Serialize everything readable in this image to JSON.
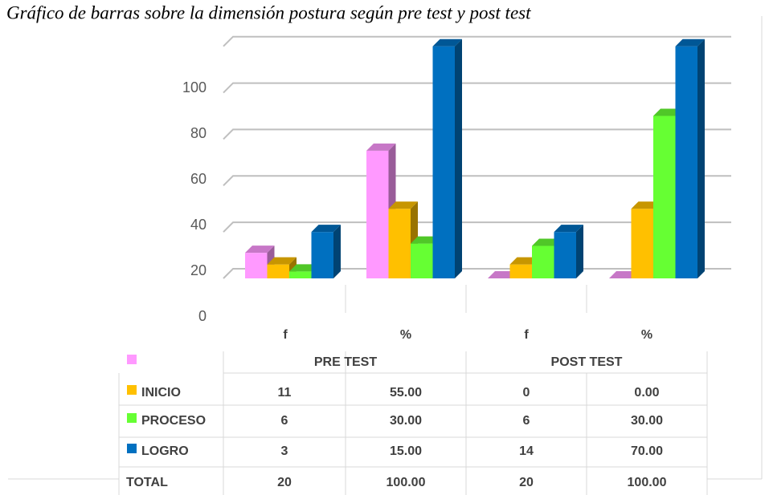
{
  "chart_data": {
    "type": "bar3d",
    "title": "Gráfico de barras sobre la dimensión postura según pre test y post test",
    "categories": [
      "f",
      "%",
      "f",
      "%"
    ],
    "groups": [
      "PRE TEST",
      "POST TEST"
    ],
    "series": [
      {
        "name": "INICIO",
        "color": "#ff99ff",
        "values": [
          11,
          55,
          0,
          0
        ],
        "value_labels": [
          "11",
          "55.00",
          "0",
          "0.00"
        ]
      },
      {
        "name": "PROCESO",
        "color": "#ffc000",
        "values": [
          6,
          30,
          6,
          30
        ],
        "value_labels": [
          "6",
          "30.00",
          "6",
          "30.00"
        ]
      },
      {
        "name": "LOGRO",
        "color": "#66ff33",
        "values": [
          3,
          15,
          14,
          70
        ],
        "value_labels": [
          "3",
          "15.00",
          "14",
          "70.00"
        ]
      },
      {
        "name": "TOTAL",
        "color": "#0070c0",
        "values": [
          20,
          100,
          20,
          100
        ],
        "value_labels": [
          "20",
          "100.00",
          "20",
          "100.00"
        ]
      }
    ],
    "ylim": [
      0,
      100
    ],
    "yticks": [
      0,
      20,
      40,
      60,
      80,
      100
    ],
    "grid": true
  }
}
